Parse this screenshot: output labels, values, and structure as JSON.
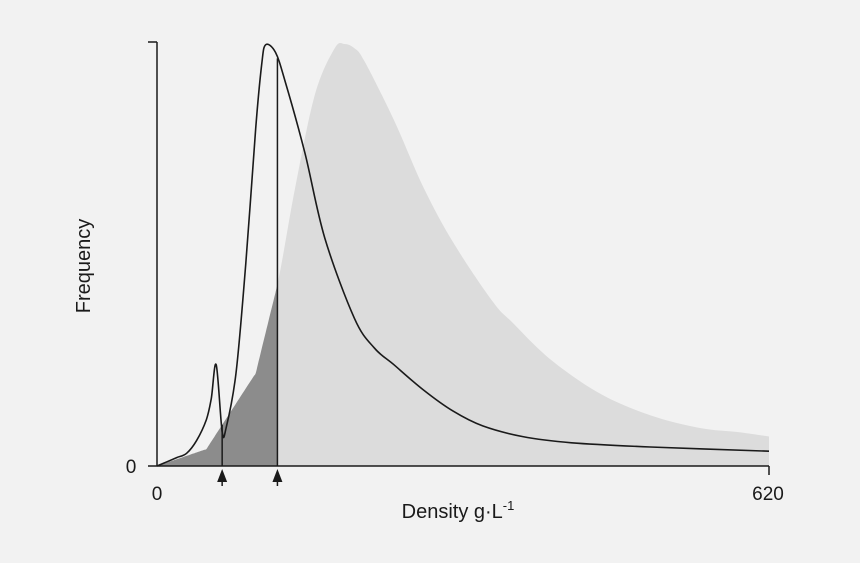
{
  "chart_data": {
    "type": "area",
    "title": "",
    "xlabel": "Density g·L",
    "xlabel_superscript": "-1",
    "ylabel": "Frequency",
    "xlim": [
      0,
      620
    ],
    "ylim": [
      0,
      1
    ],
    "x_tick_labels": [
      "0",
      "620"
    ],
    "y_tick_labels": [
      "0"
    ],
    "grid": false,
    "legend": "none",
    "series": [
      {
        "style": "filled-light-gray",
        "color": "#dcdcdc",
        "x": [
          0,
          50,
          100,
          122,
          140,
          160,
          180,
          190,
          200,
          210,
          240,
          270,
          300,
          340,
          360,
          400,
          450,
          500,
          550,
          590,
          620
        ],
        "y": [
          0,
          0.04,
          0.22,
          0.43,
          0.66,
          0.88,
          0.99,
          1.0,
          0.99,
          0.96,
          0.82,
          0.66,
          0.53,
          0.39,
          0.34,
          0.25,
          0.17,
          0.12,
          0.09,
          0.08,
          0.07
        ]
      },
      {
        "style": "black-line",
        "color": "#1a1a1a",
        "x": [
          0,
          10,
          20,
          30,
          40,
          50,
          55,
          60,
          66,
          70,
          80,
          90,
          100,
          106,
          110,
          120,
          130,
          150,
          170,
          200,
          220,
          240,
          270,
          300,
          330,
          370,
          420,
          500,
          620
        ],
        "y": [
          0,
          0.01,
          0.02,
          0.03,
          0.06,
          0.11,
          0.16,
          0.24,
          0.082,
          0.09,
          0.22,
          0.48,
          0.8,
          0.95,
          0.998,
          0.98,
          0.91,
          0.74,
          0.54,
          0.35,
          0.28,
          0.24,
          0.18,
          0.13,
          0.095,
          0.07,
          0.055,
          0.045,
          0.035
        ]
      }
    ],
    "shaded_region": {
      "color": "#8c8c8c",
      "x_range": [
        0,
        122
      ],
      "markers_x": [
        66,
        122
      ]
    }
  }
}
